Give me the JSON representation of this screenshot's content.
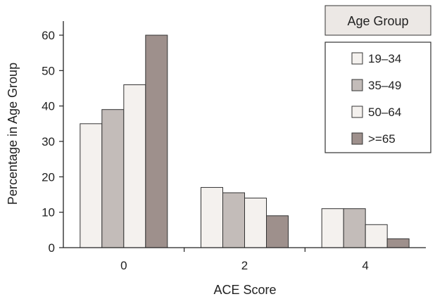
{
  "chart_data": {
    "type": "bar",
    "title": "",
    "xlabel": "ACE Score",
    "ylabel": "Percentage in Age Group",
    "categories": [
      "0",
      "2",
      "4"
    ],
    "series": [
      {
        "name": "19–34",
        "values": [
          35,
          17,
          11
        ],
        "color": "#f4f1ee"
      },
      {
        "name": "35–49",
        "values": [
          39,
          15.5,
          11
        ],
        "color": "#c3bcb9"
      },
      {
        "name": "50–64",
        "values": [
          46,
          14,
          6.5
        ],
        "color": "#f4f1ee"
      },
      {
        "name": ">=65",
        "values": [
          60,
          9,
          2.5
        ],
        "color": "#9e908c"
      }
    ],
    "ylim": [
      0,
      60
    ],
    "yticks": [
      "0",
      "10",
      "20",
      "30",
      "40",
      "50",
      "60"
    ],
    "legend_title": "Age Group",
    "legend_position": "top-right",
    "grid": false
  }
}
